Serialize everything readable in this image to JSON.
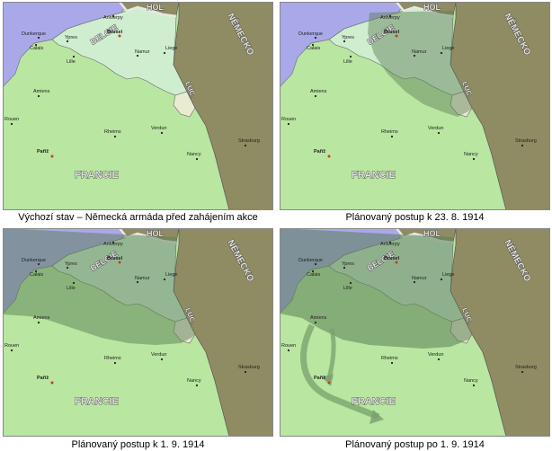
{
  "colors": {
    "sea": "#a9a9e9",
    "france": "#b9e6a1",
    "belgium": "#cfeecf",
    "luxembourg": "#ebebd2",
    "germany": "#8f8c63",
    "netherlands": "#8f8c63",
    "advance": "#5b7d55"
  },
  "labels": {
    "netherlands": "HOL",
    "germany": "NĚMECKO",
    "belgium": "BELGIE",
    "luxembourg": "LUC.",
    "france": "FRANCIE"
  },
  "cities": [
    {
      "name": "Antverpy"
    },
    {
      "name": "Brusel",
      "capital": true
    },
    {
      "name": "Dunkerque"
    },
    {
      "name": "Calais"
    },
    {
      "name": "Ypres"
    },
    {
      "name": "Lille"
    },
    {
      "name": "Namur"
    },
    {
      "name": "Liege"
    },
    {
      "name": "Amiens"
    },
    {
      "name": "Rouen"
    },
    {
      "name": "Rheims"
    },
    {
      "name": "Verdun"
    },
    {
      "name": "Nancy"
    },
    {
      "name": "Strasburg"
    },
    {
      "name": "Paříž",
      "capital": true
    }
  ],
  "panels": [
    {
      "caption": "Výchozí stav – Německá armáda před zahájením akce",
      "stage": 0
    },
    {
      "caption": "Plánovaný postup k 23. 8. 1914",
      "stage": 1
    },
    {
      "caption": "Plánovaný postup k 1. 9. 1914",
      "stage": 2
    },
    {
      "caption": "Plánovaný postup po 1. 9. 1914",
      "stage": 3
    }
  ]
}
